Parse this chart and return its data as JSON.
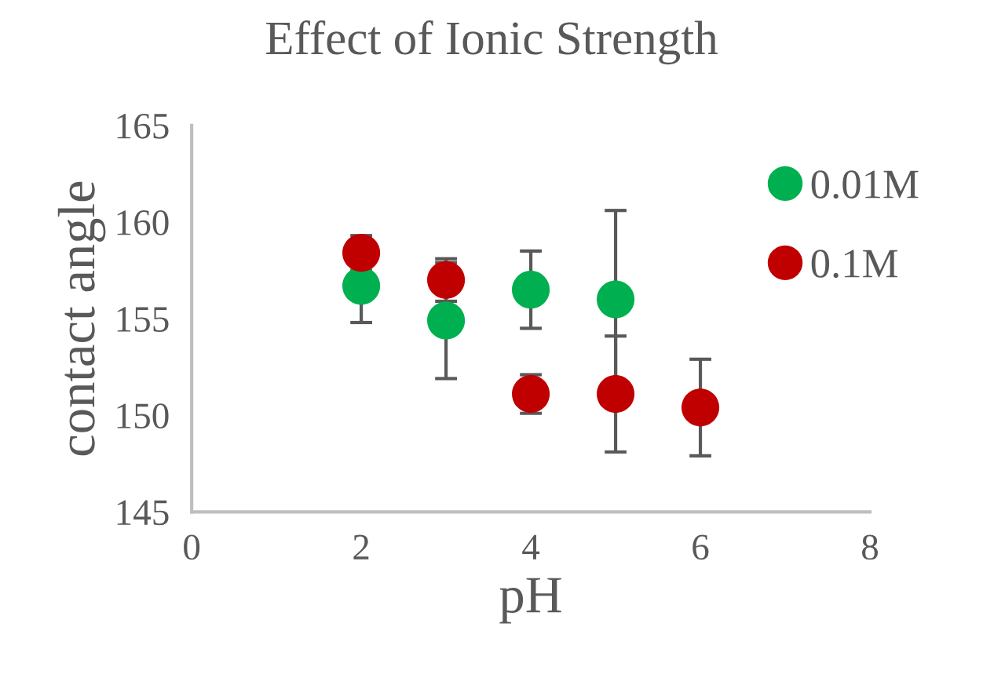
{
  "chart_data": {
    "type": "scatter",
    "title": "Effect of Ionic Strength",
    "xlabel": "pH",
    "ylabel": "contact angle",
    "xlim": [
      0,
      8
    ],
    "xticks": [
      0,
      2,
      4,
      6,
      8
    ],
    "ylim": [
      145,
      165
    ],
    "yticks": [
      145,
      150,
      155,
      160,
      165
    ],
    "grid": false,
    "legend": "right",
    "marker": "circle",
    "series": [
      {
        "name": "0.01M",
        "color": "#00b050",
        "x": [
          2,
          3,
          4,
          5
        ],
        "values": [
          156.7,
          154.9,
          156.5,
          156.0
        ],
        "errors": [
          1.9,
          3.0,
          2.0,
          4.6
        ]
      },
      {
        "name": "0.1M",
        "color": "#c00000",
        "x": [
          2,
          3,
          4,
          5,
          6
        ],
        "values": [
          158.4,
          157.0,
          151.1,
          151.1,
          150.4
        ],
        "errors": [
          0.9,
          1.1,
          1.0,
          3.0,
          2.5
        ]
      }
    ]
  }
}
